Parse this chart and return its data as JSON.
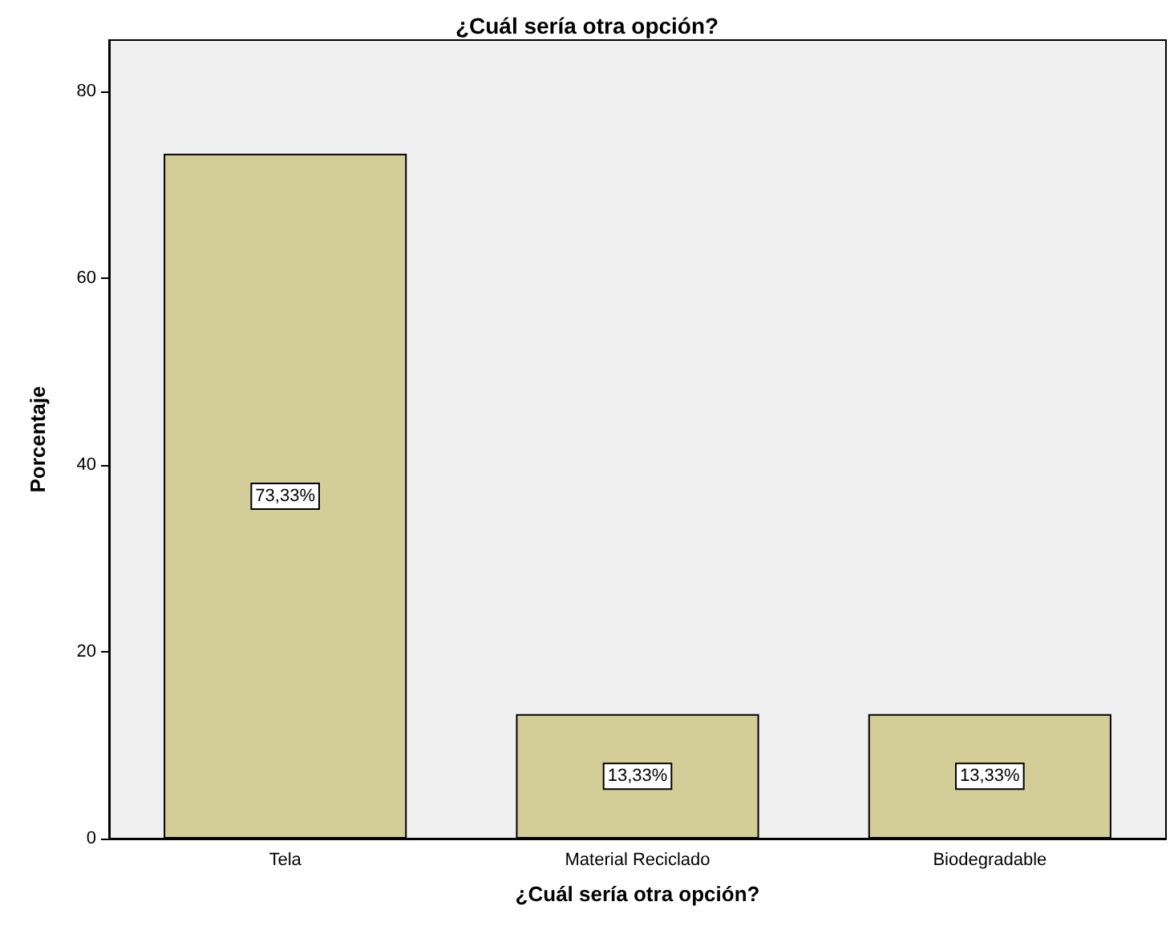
{
  "chart_data": {
    "type": "bar",
    "title": "¿Cuál sería otra opción?",
    "xlabel": "¿Cuál sería otra opción?",
    "ylabel": "Porcentaje",
    "categories": [
      "Tela",
      "Material Reciclado",
      "Biodegradable"
    ],
    "values": [
      73.33,
      13.33,
      13.33
    ],
    "value_labels": [
      "73,33%",
      "13,33%",
      "13,33%"
    ],
    "color": "#d3ce97",
    "ylim": [
      0,
      85.5
    ],
    "yticks": [
      0,
      20,
      40,
      60,
      80
    ],
    "grid": false
  }
}
